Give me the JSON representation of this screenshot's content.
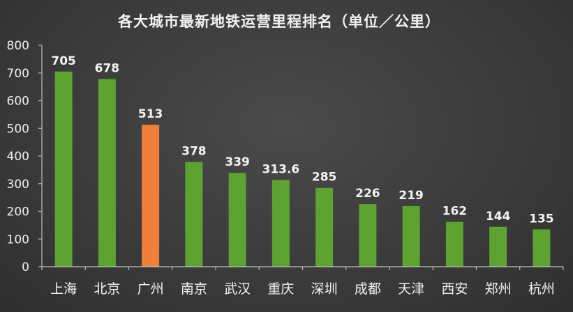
{
  "chart_data": {
    "type": "bar",
    "title": "各大城市最新地铁运营里程排名（单位／公里）",
    "xlabel": "",
    "ylabel": "",
    "categories": [
      "上海",
      "北京",
      "广州",
      "南京",
      "武汉",
      "重庆",
      "深圳",
      "成都",
      "天津",
      "西安",
      "郑州",
      "杭州"
    ],
    "values": [
      705,
      678,
      513,
      378,
      339,
      313.6,
      285,
      226,
      219,
      162,
      144,
      135
    ],
    "value_labels": [
      "705",
      "678",
      "513",
      "378",
      "339",
      "313.6",
      "285",
      "226",
      "219",
      "162",
      "144",
      "135"
    ],
    "y_ticks": [
      0,
      100,
      200,
      300,
      400,
      500,
      600,
      700,
      800
    ],
    "ylim": [
      0,
      800
    ],
    "highlight_category": "广州",
    "grid": false,
    "legend": "none",
    "colors": {
      "bar": "#5ea232",
      "highlight": "#f07f3c",
      "text": "#f4f4f4",
      "axis": "#bdbdbd"
    }
  }
}
